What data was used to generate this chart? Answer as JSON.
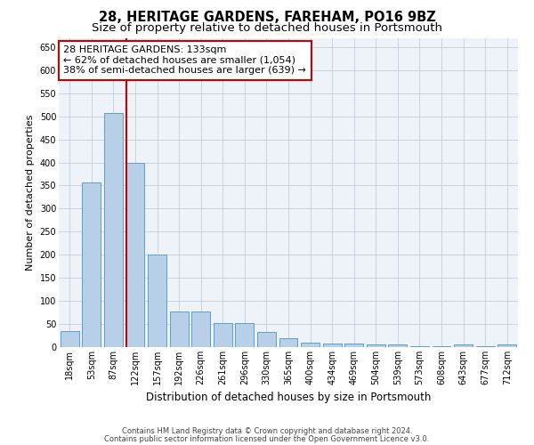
{
  "title": "28, HERITAGE GARDENS, FAREHAM, PO16 9BZ",
  "subtitle": "Size of property relative to detached houses in Portsmouth",
  "xlabel": "Distribution of detached houses by size in Portsmouth",
  "ylabel": "Number of detached properties",
  "categories": [
    "18sqm",
    "53sqm",
    "87sqm",
    "122sqm",
    "157sqm",
    "192sqm",
    "226sqm",
    "261sqm",
    "296sqm",
    "330sqm",
    "365sqm",
    "400sqm",
    "434sqm",
    "469sqm",
    "504sqm",
    "539sqm",
    "573sqm",
    "608sqm",
    "643sqm",
    "677sqm",
    "712sqm"
  ],
  "values": [
    35,
    357,
    507,
    400,
    200,
    78,
    78,
    52,
    52,
    32,
    20,
    10,
    8,
    8,
    5,
    5,
    1,
    1,
    5,
    1,
    5
  ],
  "bar_color": "#b8cfe8",
  "bar_edgecolor": "#5a9fd4",
  "highlight_bar_idx": 3,
  "highlight_color": "#cc0000",
  "annotation_line1": "28 HERITAGE GARDENS: 133sqm",
  "annotation_line2": "← 62% of detached houses are smaller (1,054)",
  "annotation_line3": "38% of semi-detached houses are larger (639) →",
  "annotation_box_color": "#ffffff",
  "annotation_box_edgecolor": "#cc0000",
  "ylim": [
    0,
    670
  ],
  "yticks": [
    0,
    50,
    100,
    150,
    200,
    250,
    300,
    350,
    400,
    450,
    500,
    550,
    600,
    650
  ],
  "footnote1": "Contains HM Land Registry data © Crown copyright and database right 2024.",
  "footnote2": "Contains public sector information licensed under the Open Government Licence v3.0.",
  "bg_color": "#eef2f9",
  "grid_color": "#c5cedf",
  "title_fontsize": 10.5,
  "subtitle_fontsize": 9.5,
  "xlabel_fontsize": 8.5,
  "ylabel_fontsize": 8,
  "tick_fontsize": 7,
  "annotation_fontsize": 8,
  "footnote_fontsize": 6
}
